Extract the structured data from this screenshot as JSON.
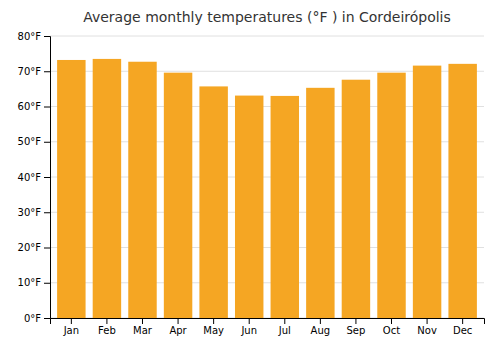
{
  "chart_data": {
    "type": "bar",
    "title": "Average monthly temperatures (°F ) in Cordeirópolis",
    "categories": [
      "Jan",
      "Feb",
      "Mar",
      "Apr",
      "May",
      "Jun",
      "Jul",
      "Aug",
      "Sep",
      "Oct",
      "Nov",
      "Dec"
    ],
    "values": [
      73.2,
      73.5,
      72.7,
      69.6,
      65.7,
      63.1,
      63.0,
      65.3,
      67.6,
      69.6,
      71.6,
      72.1
    ],
    "color": "#F5A623",
    "ylim": [
      0,
      80
    ],
    "yticks": [
      {
        "value": 0,
        "label": "0°F"
      },
      {
        "value": 10,
        "label": "10°F"
      },
      {
        "value": 20,
        "label": "20°F"
      },
      {
        "value": 30,
        "label": "30°F"
      },
      {
        "value": 40,
        "label": "40°F"
      },
      {
        "value": 50,
        "label": "50°F"
      },
      {
        "value": 60,
        "label": "60°F"
      },
      {
        "value": 70,
        "label": "70°F"
      },
      {
        "value": 80,
        "label": "80°F"
      }
    ],
    "grid": true
  }
}
